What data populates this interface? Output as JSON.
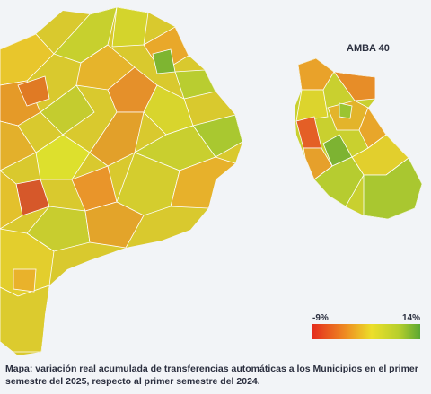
{
  "inset": {
    "title": "AMBA 40"
  },
  "legend": {
    "min_label": "-9%",
    "max_label": "14%"
  },
  "caption": "Mapa: variación real acumulada de transferencias automáticas a los Municipios en el primer semestre del 2025, respecto al primer semestre del 2024."
}
